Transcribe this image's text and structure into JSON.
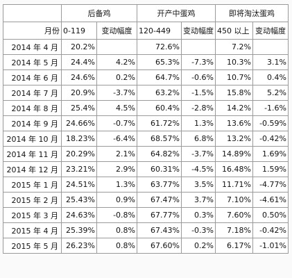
{
  "header": {
    "groups": [
      "后备鸡",
      "开产中蛋鸡",
      "即将淘汰蛋鸡"
    ],
    "month_label": "月份",
    "ranges": [
      "0-119",
      "120-449",
      "450 以上"
    ],
    "change_label": "变动幅度"
  },
  "rows": [
    {
      "month": "2014 年 4 月",
      "v1": "20.2%",
      "c1": "",
      "v2": "72.6%",
      "c2": "",
      "v3": "7.2%",
      "c3": ""
    },
    {
      "month": "2014 年 5 月",
      "v1": "24.4%",
      "c1": "4.2%",
      "v2": "65.3%",
      "c2": "-7.3%",
      "v3": "10.3%",
      "c3": "3.1%"
    },
    {
      "month": "2014 年 6 月",
      "v1": "24.6%",
      "c1": "0.2%",
      "v2": "64.7%",
      "c2": "-0.6%",
      "v3": "10.7%",
      "c3": "0.4%"
    },
    {
      "month": "2014 年 7 月",
      "v1": "20.9%",
      "c1": "-3.7%",
      "v2": "63.2%",
      "c2": "-1.5%",
      "v3": "15.8%",
      "c3": "5.2%"
    },
    {
      "month": "2014 年 8 月",
      "v1": "25.4%",
      "c1": "4.5%",
      "v2": "60.4%",
      "c2": "-2.8%",
      "v3": "14.2%",
      "c3": "-1.6%"
    },
    {
      "month": "2014 年 9 月",
      "v1": "24.66%",
      "c1": "-0.7%",
      "v2": "61.72%",
      "c2": "1.3%",
      "v3": "13.6%",
      "c3": "-0.59%"
    },
    {
      "month": "2014 年 10 月",
      "v1": "18.23%",
      "c1": "-6.4%",
      "v2": "68.57%",
      "c2": "6.8%",
      "v3": "13.2%",
      "c3": "-0.42%"
    },
    {
      "month": "2014 年 11 月",
      "v1": "20.29%",
      "c1": "2.1%",
      "v2": "64.82%",
      "c2": "-3.7%",
      "v3": "14.89%",
      "c3": "1.69%"
    },
    {
      "month": "2014 年 12 月",
      "v1": "23.21%",
      "c1": "2.9%",
      "v2": "60.31%",
      "c2": "-4.5%",
      "v3": "16.48%",
      "c3": "1.59%"
    },
    {
      "month": "2015 年 1 月",
      "v1": "24.51%",
      "c1": "1.3%",
      "v2": "63.77%",
      "c2": "3.5%",
      "v3": "11.71%",
      "c3": "-4.77%"
    },
    {
      "month": "2015 年 2 月",
      "v1": "25.43%",
      "c1": "0.9%",
      "v2": "67.47%",
      "c2": "3.7%",
      "v3": "7.10%",
      "c3": "-4.61%"
    },
    {
      "month": "2015 年 3 月",
      "v1": "24.63%",
      "c1": "-0.8%",
      "v2": "67.77%",
      "c2": "0.3%",
      "v3": "7.60%",
      "c3": "0.50%"
    },
    {
      "month": "2015 年 4 月",
      "v1": "25.39%",
      "c1": "0.8%",
      "v2": "67.43%",
      "c2": "-0.3%",
      "v3": "7.18%",
      "c3": "-0.42%"
    },
    {
      "month": "2015 年 5 月",
      "v1": "26.23%",
      "c1": "0.8%",
      "v2": "67.60%",
      "c2": "0.2%",
      "v3": "6.17%",
      "c3": "-1.01%"
    }
  ]
}
